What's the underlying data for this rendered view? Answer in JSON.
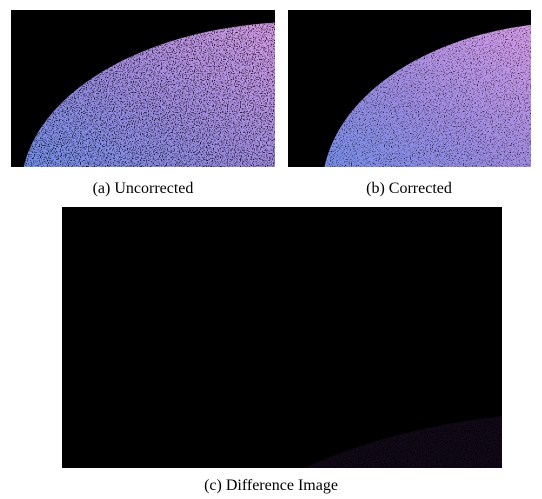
{
  "figure": {
    "subfigures": [
      {
        "caption": "(a) Uncorrected"
      },
      {
        "caption": "(b) Corrected"
      },
      {
        "caption": "(c) Difference Image"
      }
    ]
  }
}
